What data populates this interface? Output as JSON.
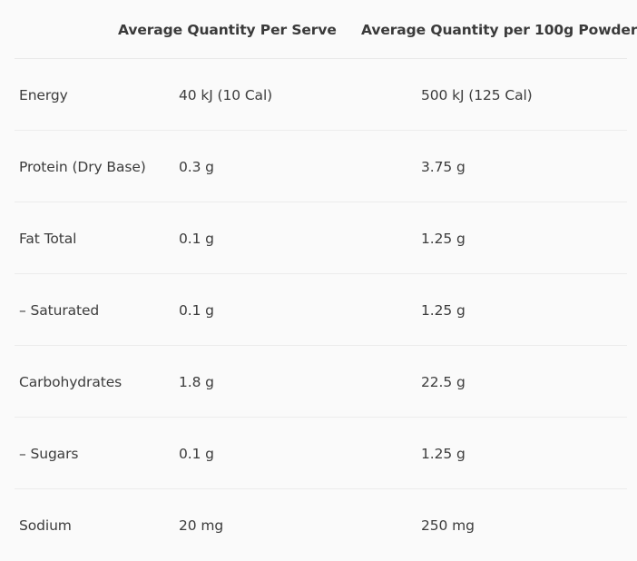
{
  "table": {
    "headers": {
      "nutrient": "",
      "per_serve": "Average Quantity Per Serve",
      "per_100g": "Average Quantity per 100g Powder"
    },
    "rows": [
      {
        "nutrient": "Energy",
        "per_serve": "40 kJ (10 Cal)",
        "per_100g": "500 kJ (125 Cal)"
      },
      {
        "nutrient": "Protein (Dry Base)",
        "per_serve": "0.3 g",
        "per_100g": "3.75 g"
      },
      {
        "nutrient": "Fat Total",
        "per_serve": "0.1 g",
        "per_100g": "1.25 g"
      },
      {
        "nutrient": "– Saturated",
        "per_serve": "0.1 g",
        "per_100g": "1.25 g"
      },
      {
        "nutrient": "Carbohydrates",
        "per_serve": "1.8 g",
        "per_100g": "22.5 g"
      },
      {
        "nutrient": "– Sugars",
        "per_serve": "0.1 g",
        "per_100g": "1.25 g"
      },
      {
        "nutrient": "Sodium",
        "per_serve": "20 mg",
        "per_100g": "250 mg"
      }
    ]
  }
}
